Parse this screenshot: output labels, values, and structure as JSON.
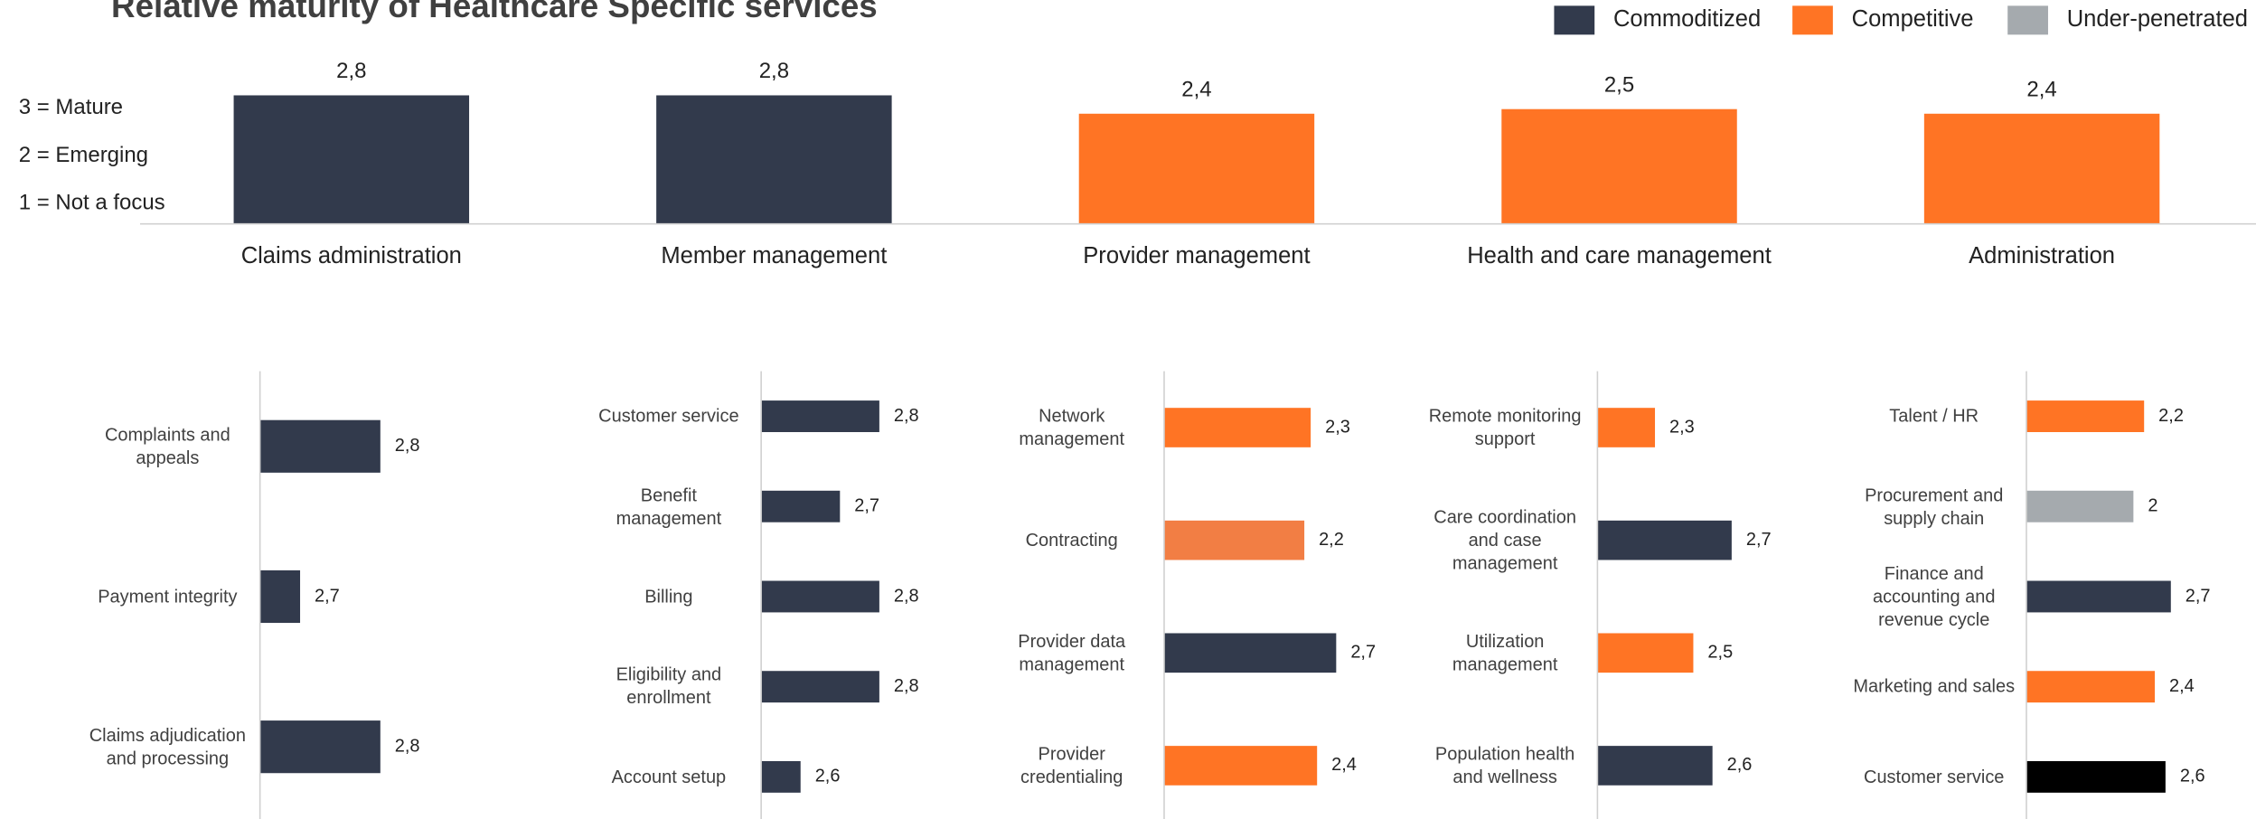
{
  "chart_data": [
    {
      "type": "bar",
      "title": "Relative maturity of Healthcare Specific services",
      "legend": [
        {
          "name": "Commoditized",
          "color": "#323a4c"
        },
        {
          "name": "Competitive",
          "color": "#ff7424"
        },
        {
          "name": "Under-penetrated",
          "color": "#a5aaae"
        }
      ],
      "annotations": [
        "3 = Mature",
        "2 = Emerging",
        "1 = Not a focus"
      ],
      "categories": [
        "Claims administration",
        "Member management",
        "Provider management",
        "Health and care management",
        "Administration"
      ],
      "values": [
        2.8,
        2.8,
        2.4,
        2.5,
        2.4
      ],
      "value_labels": [
        "2,8",
        "2,8",
        "2,4",
        "2,5",
        "2,4"
      ],
      "colors": [
        "#323a4c",
        "#323a4c",
        "#ff7424",
        "#ff7424",
        "#ff7424"
      ]
    },
    {
      "type": "barh",
      "categories": [
        "Complaints and appeals",
        "Payment integrity",
        "Claims adjudication and processing"
      ],
      "values": [
        2.8,
        2.7,
        2.8
      ],
      "value_labels": [
        "2,8",
        "2,7",
        "2,8"
      ],
      "colors": [
        "#323a4c",
        "#323a4c",
        "#323a4c"
      ],
      "xlim": [
        2.65,
        2.92
      ]
    },
    {
      "type": "barh",
      "categories": [
        "Customer service",
        "Benefit management",
        "Billing",
        "Eligibility and enrollment",
        "Account setup"
      ],
      "values": [
        2.8,
        2.7,
        2.8,
        2.8,
        2.6
      ],
      "value_labels": [
        "2,8",
        "2,7",
        "2,8",
        "2,8",
        "2,6"
      ],
      "colors": [
        "#323a4c",
        "#323a4c",
        "#323a4c",
        "#323a4c",
        "#323a4c"
      ],
      "xlim": [
        2.5,
        3.05
      ]
    },
    {
      "type": "barh",
      "categories": [
        "Network management",
        "Contracting",
        "Provider data management",
        "Provider credentialing"
      ],
      "values": [
        2.3,
        2.2,
        2.7,
        2.4
      ],
      "value_labels": [
        "2,3",
        "2,2",
        "2,7",
        "2,4"
      ],
      "colors": [
        "#ff7424",
        "#f27e44",
        "#323a4c",
        "#ff7424"
      ],
      "xlim": [
        0,
        3.4
      ]
    },
    {
      "type": "barh",
      "categories": [
        "Remote monitoring support",
        "Care coordination and case management",
        "Utilization management",
        "Population health and wellness"
      ],
      "values": [
        2.3,
        2.7,
        2.5,
        2.6
      ],
      "value_labels": [
        "2,3",
        "2,7",
        "2,5",
        "2,6"
      ],
      "colors": [
        "#ff7424",
        "#323a4c",
        "#ff7424",
        "#323a4c"
      ],
      "xlim": [
        2.0,
        3.13
      ]
    },
    {
      "type": "barh",
      "categories": [
        "Talent / HR",
        "Procurement and supply chain",
        "Finance and accounting and revenue cycle",
        "Marketing and sales",
        "Customer service"
      ],
      "values": [
        2.2,
        2.0,
        2.7,
        2.4,
        2.6
      ],
      "value_labels": [
        "2,2",
        "2",
        "2,7",
        "2,4",
        "2,6"
      ],
      "colors": [
        "#ff7424",
        "#a5aaae",
        "#323a4c",
        "#ff7424",
        "#000000"
      ],
      "xlim": [
        0,
        4.05
      ]
    }
  ]
}
